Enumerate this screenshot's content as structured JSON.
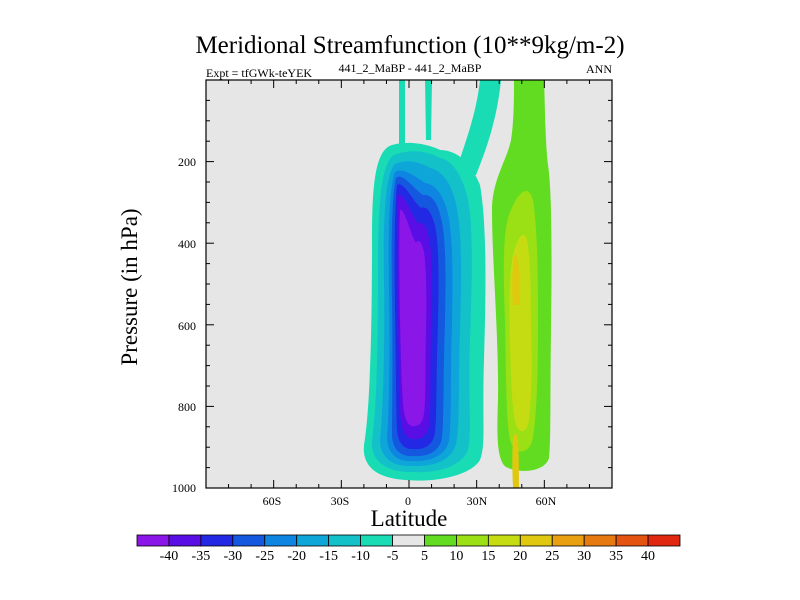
{
  "chart_data": {
    "type": "contour",
    "title": "Meridional Streamfunction (10**9kg/m-2)",
    "subtitle_left": "Expt = tfGWk-teYEK",
    "subtitle_center": "441_2_MaBP - 441_2_MaBP",
    "subtitle_right": "ANN",
    "xlabel": "Latitude",
    "ylabel": "Pressure (in hPa)",
    "xlim": [
      -90,
      90
    ],
    "ylim": [
      1000,
      0
    ],
    "x_ticks": [
      {
        "value": -60,
        "label": "60S"
      },
      {
        "value": -30,
        "label": "30S"
      },
      {
        "value": 0,
        "label": "0"
      },
      {
        "value": 30,
        "label": "30N"
      },
      {
        "value": 60,
        "label": "60N"
      }
    ],
    "y_ticks": [
      {
        "value": 200,
        "label": "200"
      },
      {
        "value": 400,
        "label": "400"
      },
      {
        "value": 600,
        "label": "600"
      },
      {
        "value": 800,
        "label": "800"
      },
      {
        "value": 1000,
        "label": "1000"
      }
    ],
    "levels": [
      -40,
      -35,
      -30,
      -25,
      -20,
      -15,
      -10,
      -5,
      5,
      10,
      15,
      20,
      25,
      30,
      35,
      40
    ],
    "colorbar_labels": [
      "-40",
      "-35",
      "-30",
      "-25",
      "-20",
      "-15",
      "-10",
      "-5",
      "5",
      "10",
      "15",
      "20",
      "25",
      "30",
      "35",
      "40"
    ],
    "colorbar_colors": [
      "#8a16e8",
      "#5a0ee6",
      "#2228e3",
      "#1458e0",
      "#0f85e2",
      "#0ea6d8",
      "#12c2c8",
      "#19dcb5",
      "#e6e6e6",
      "#62dc20",
      "#9ae014",
      "#c5dc12",
      "#e0c810",
      "#e8a010",
      "#e67a10",
      "#e45410",
      "#e02810"
    ],
    "background_color": "#e6e6e6",
    "features": [
      {
        "name": "southern-hadley-cell",
        "sign": "negative",
        "center_lat": 0,
        "center_p": 500,
        "min_value": -40
      },
      {
        "name": "northern-ferrel-cell",
        "sign": "positive",
        "center_lat": 48,
        "center_p": 460,
        "max_value": 20
      }
    ]
  }
}
